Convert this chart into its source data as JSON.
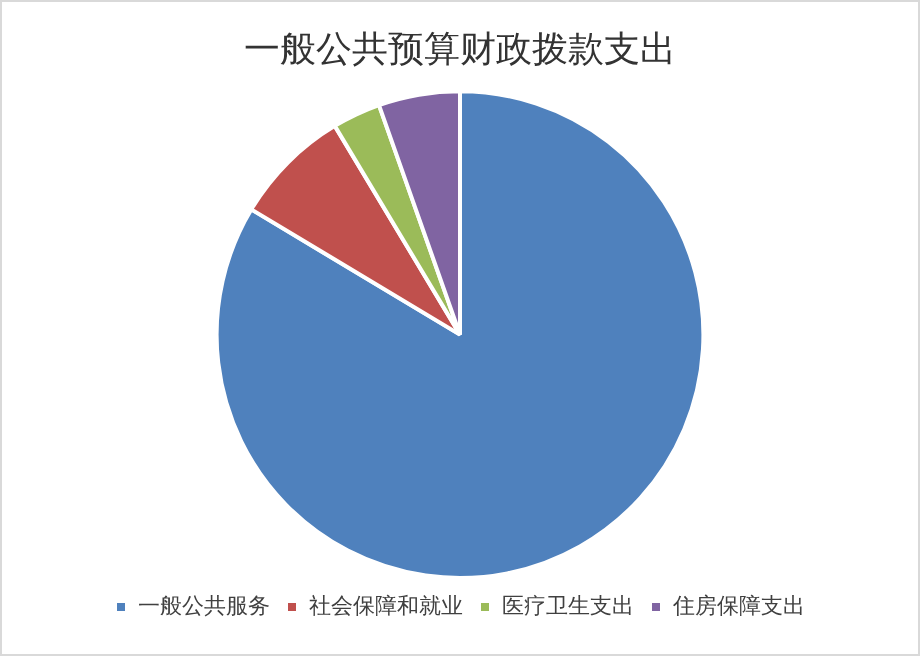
{
  "chart_data": {
    "type": "pie",
    "title": "一般公共预算财政拨款支出",
    "categories": [
      "一般公共服务",
      "社会保障和就业",
      "医疗卫生支出",
      "住房保障支出"
    ],
    "values": [
      83.6,
      7.8,
      3.2,
      5.4
    ],
    "colors": [
      "#4f81bd",
      "#c0504d",
      "#9bbb59",
      "#8064a2"
    ],
    "legend": "bottom"
  }
}
